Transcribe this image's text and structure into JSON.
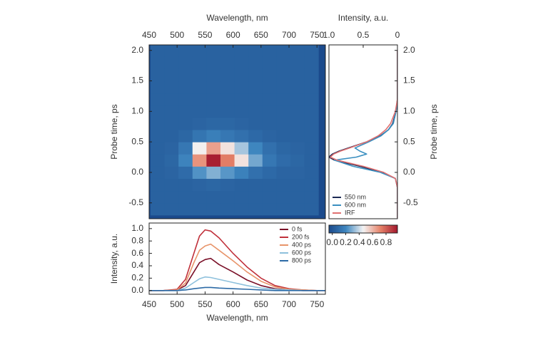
{
  "chart_data": [
    {
      "type": "heatmap",
      "xlabel": "Wavelength, nm",
      "ylabel": "Probe time, ps",
      "x": [
        465,
        490,
        515,
        540,
        565,
        590,
        615,
        640,
        665,
        690,
        715,
        740
      ],
      "y": [
        -0.6,
        -0.4,
        -0.2,
        0,
        0.2,
        0.4,
        0.6,
        0.8,
        1.0,
        1.2,
        1.4,
        1.6,
        1.8,
        2.0
      ],
      "z": [
        [
          0.05,
          0.05,
          0.05,
          0.05,
          0.05,
          0.05,
          0.05,
          0.05,
          0.05,
          0.05,
          0.05,
          0.05
        ],
        [
          0.05,
          0.05,
          0.05,
          0.05,
          0.05,
          0.05,
          0.05,
          0.05,
          0.05,
          0.05,
          0.05,
          0.05
        ],
        [
          0.05,
          0.05,
          0.05,
          0.06,
          0.07,
          0.06,
          0.05,
          0.05,
          0.05,
          0.05,
          0.05,
          0.05
        ],
        [
          0.05,
          0.06,
          0.09,
          0.23,
          0.3,
          0.24,
          0.18,
          0.11,
          0.08,
          0.06,
          0.06,
          0.05
        ],
        [
          0.05,
          0.07,
          0.19,
          0.68,
          0.95,
          0.73,
          0.5,
          0.28,
          0.14,
          0.09,
          0.07,
          0.05
        ],
        [
          0.05,
          0.06,
          0.14,
          0.47,
          0.65,
          0.5,
          0.35,
          0.2,
          0.11,
          0.07,
          0.06,
          0.05
        ],
        [
          0.05,
          0.05,
          0.07,
          0.13,
          0.17,
          0.14,
          0.11,
          0.08,
          0.06,
          0.05,
          0.05,
          0.05
        ],
        [
          0.05,
          0.05,
          0.05,
          0.06,
          0.07,
          0.07,
          0.06,
          0.05,
          0.05,
          0.05,
          0.05,
          0.05
        ],
        [
          0.05,
          0.05,
          0.05,
          0.05,
          0.05,
          0.05,
          0.05,
          0.05,
          0.05,
          0.05,
          0.05,
          0.05
        ],
        [
          0.05,
          0.05,
          0.05,
          0.05,
          0.05,
          0.05,
          0.05,
          0.05,
          0.05,
          0.05,
          0.05,
          0.05
        ],
        [
          0.05,
          0.05,
          0.05,
          0.05,
          0.05,
          0.05,
          0.05,
          0.05,
          0.05,
          0.05,
          0.05,
          0.05
        ],
        [
          0.05,
          0.05,
          0.05,
          0.05,
          0.05,
          0.05,
          0.05,
          0.05,
          0.05,
          0.05,
          0.05,
          0.05
        ],
        [
          0.05,
          0.05,
          0.05,
          0.05,
          0.05,
          0.05,
          0.05,
          0.05,
          0.05,
          0.05,
          0.05,
          0.05
        ],
        [
          0.05,
          0.05,
          0.05,
          0.05,
          0.05,
          0.05,
          0.05,
          0.05,
          0.05,
          0.05,
          0.05,
          0.05
        ]
      ],
      "xlim": [
        450,
        765
      ],
      "ylim": [
        -0.76,
        2.09
      ],
      "xticks": [
        450,
        500,
        550,
        600,
        650,
        700,
        750
      ],
      "yticks": [
        {
          "value": 2,
          "label": "2.0"
        },
        1.5,
        {
          "value": 1,
          "label": "1.0"
        },
        0.5,
        {
          "value": 0,
          "label": "0.0"
        },
        -0.5
      ],
      "colormap": [
        "#1b4a8c",
        "#3f87c0",
        "#f4f4f4",
        "#e6836a",
        "#a3172c"
      ],
      "clim": [
        -0.05,
        0.97
      ],
      "cticks": [
        {
          "value": 0,
          "label": "0.0"
        },
        0.2,
        0.4,
        0.6,
        0.8
      ]
    },
    {
      "type": "line",
      "orientation": "vertical",
      "xlabel": "Intensity, a.u.",
      "ylabel": "Probe time, ps",
      "y": [
        -0.75,
        -0.5,
        -0.25,
        -0.1,
        0,
        0.1,
        0.2,
        0.25,
        0.3,
        0.35,
        0.4,
        0.5,
        0.6,
        0.7,
        0.8,
        1.0,
        1.2,
        1.5,
        2.0
      ],
      "series": [
        {
          "name": "550 nm",
          "color": "#1d2b55",
          "values": [
            0,
            0,
            0,
            0.03,
            0.22,
            0.55,
            0.92,
            1.0,
            0.95,
            0.85,
            0.72,
            0.45,
            0.25,
            0.13,
            0.07,
            0.02,
            0,
            0,
            0
          ]
        },
        {
          "name": "600 nm",
          "color": "#3a8fc0",
          "values": [
            0,
            0,
            0,
            0.03,
            0.25,
            0.65,
            0.92,
            0.6,
            0.45,
            0.55,
            0.62,
            0.42,
            0.24,
            0.13,
            0.06,
            0.02,
            0,
            0,
            0
          ]
        },
        {
          "name": "IRF",
          "color": "#e07070",
          "values": [
            0,
            0,
            0,
            0.03,
            0.2,
            0.5,
            0.88,
            0.98,
            0.93,
            0.83,
            0.7,
            0.45,
            0.28,
            0.17,
            0.1,
            0.03,
            0,
            0,
            0
          ]
        }
      ],
      "xlim": [
        1,
        0
      ],
      "ylim": [
        -0.76,
        2.09
      ],
      "xticks": [
        {
          "value": 1,
          "label": "1.0"
        },
        0.5,
        0
      ],
      "yticks": [
        {
          "value": 2,
          "label": "2.0"
        },
        1.5,
        {
          "value": 1,
          "label": "1.0"
        },
        0.5,
        {
          "value": 0,
          "label": "0.0"
        },
        -0.5
      ],
      "legend": "lower-left"
    },
    {
      "type": "line",
      "xlabel": "Wavelength, nm",
      "ylabel": "Intensity, a.u.",
      "x": [
        450,
        475,
        500,
        515,
        530,
        540,
        550,
        560,
        575,
        600,
        625,
        650,
        675,
        700,
        725,
        750,
        765
      ],
      "series": [
        {
          "name": "0 fs",
          "color": "#7a1028",
          "values": [
            0,
            0,
            0.01,
            0.08,
            0.3,
            0.45,
            0.5,
            0.52,
            0.42,
            0.3,
            0.17,
            0.08,
            0.03,
            0.01,
            0,
            0,
            0
          ]
        },
        {
          "name": "200 fs",
          "color": "#c0303a",
          "values": [
            0,
            0,
            0.02,
            0.18,
            0.6,
            0.88,
            0.98,
            0.96,
            0.85,
            0.6,
            0.38,
            0.2,
            0.08,
            0.03,
            0.01,
            0,
            0
          ]
        },
        {
          "name": "400 ps",
          "color": "#e8946a",
          "values": [
            0,
            0,
            0.01,
            0.12,
            0.45,
            0.65,
            0.72,
            0.75,
            0.65,
            0.48,
            0.3,
            0.15,
            0.06,
            0.02,
            0.01,
            0,
            0
          ]
        },
        {
          "name": "600 ps",
          "color": "#8dc0dc",
          "values": [
            0,
            0,
            0,
            0.04,
            0.13,
            0.19,
            0.22,
            0.21,
            0.18,
            0.13,
            0.08,
            0.04,
            0.02,
            0.01,
            0,
            0,
            0
          ]
        },
        {
          "name": "800 ps",
          "color": "#2c6aa6",
          "values": [
            0,
            0,
            0,
            0.01,
            0.03,
            0.04,
            0.05,
            0.05,
            0.04,
            0.03,
            0.02,
            0.01,
            0,
            0,
            0,
            0,
            0
          ]
        }
      ],
      "xlim": [
        450,
        765
      ],
      "ylim": [
        -0.06,
        1.09
      ],
      "xticks": [
        450,
        500,
        550,
        600,
        650,
        700,
        750
      ],
      "yticks": [
        {
          "value": 1,
          "label": "1.0"
        },
        0.8,
        0.6,
        0.4,
        0.2,
        {
          "value": 0,
          "label": "0.0"
        }
      ],
      "legend": "upper-right"
    }
  ]
}
